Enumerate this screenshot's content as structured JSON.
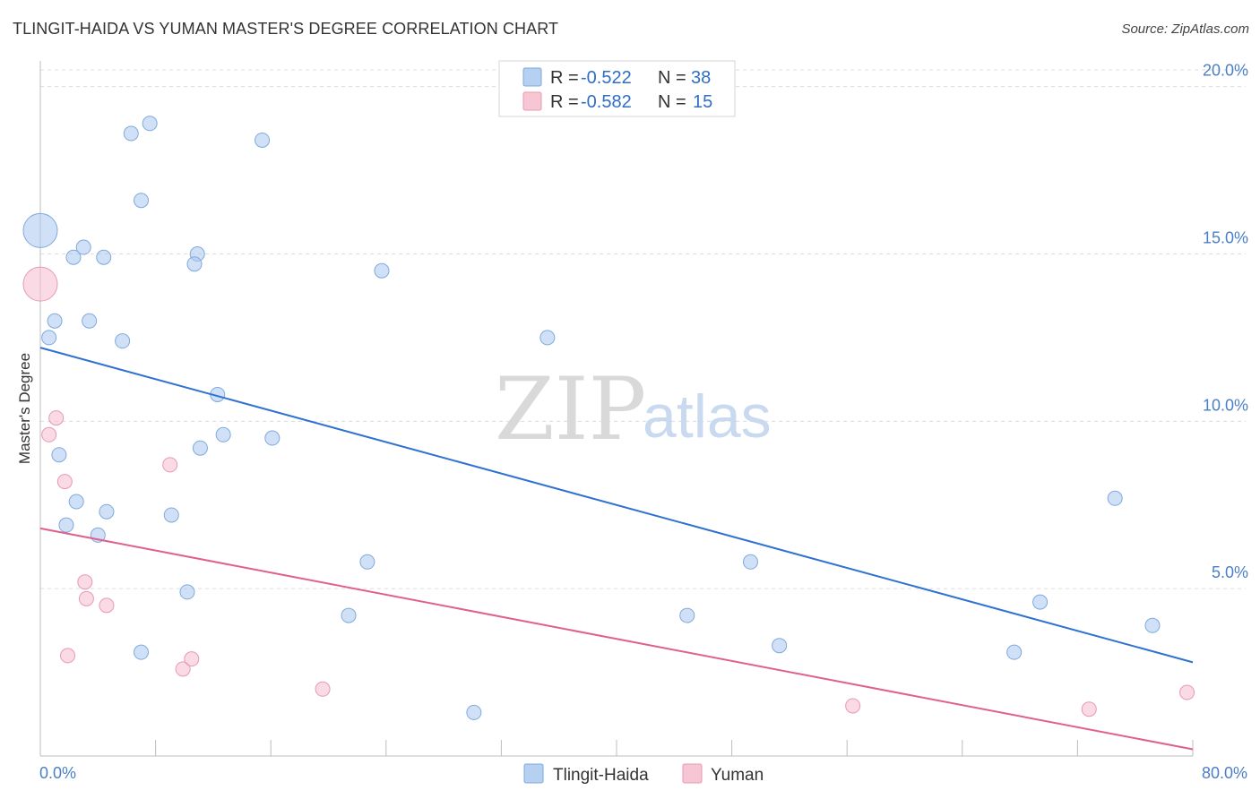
{
  "header": {
    "title": "TLINGIT-HAIDA VS YUMAN MASTER'S DEGREE CORRELATION CHART",
    "source": "Source: ZipAtlas.com"
  },
  "watermark": {
    "zip": "ZIP",
    "atlas": "atlas"
  },
  "chart_data": {
    "type": "scatter",
    "title": "TLINGIT-HAIDA VS YUMAN MASTER'S DEGREE CORRELATION CHART",
    "xlabel": "",
    "ylabel": "Master's Degree",
    "xlim": [
      0,
      80
    ],
    "ylim": [
      0,
      20.5
    ],
    "x_tick_labels": [
      {
        "value": 0,
        "label": "0.0%"
      },
      {
        "value": 80,
        "label": "80.0%"
      }
    ],
    "x_minor_ticks": [
      0,
      8,
      16,
      24,
      32,
      40,
      48,
      56,
      64,
      72,
      80
    ],
    "y_tick_labels": [
      {
        "value": 5,
        "label": "5.0%"
      },
      {
        "value": 10,
        "label": "10.0%"
      },
      {
        "value": 15,
        "label": "15.0%"
      },
      {
        "value": 20,
        "label": "20.0%"
      }
    ],
    "grid": true,
    "legend": {
      "position": "top-center",
      "entries": [
        {
          "r_label": "R =",
          "r_value": "-0.522",
          "n_label": "N =",
          "n_value": "38"
        },
        {
          "r_label": "R =",
          "r_value": "-0.582",
          "n_label": "N =",
          "n_value": "15"
        }
      ]
    },
    "series": [
      {
        "name": "Tlingit-Haida",
        "color": "#a9c8f0",
        "stroke": "#7fa9dc",
        "line_color": "#2f72cf",
        "trend": {
          "x": [
            0,
            80
          ],
          "y": [
            12.2,
            2.8
          ]
        },
        "points": [
          {
            "x": 0.0,
            "y": 15.7,
            "big": true
          },
          {
            "x": 6.3,
            "y": 18.6
          },
          {
            "x": 7.6,
            "y": 18.9
          },
          {
            "x": 15.4,
            "y": 18.4
          },
          {
            "x": 7.0,
            "y": 16.6
          },
          {
            "x": 3.0,
            "y": 15.2
          },
          {
            "x": 2.3,
            "y": 14.9
          },
          {
            "x": 4.4,
            "y": 14.9
          },
          {
            "x": 10.9,
            "y": 15.0
          },
          {
            "x": 10.7,
            "y": 14.7
          },
          {
            "x": 23.7,
            "y": 14.5
          },
          {
            "x": 1.0,
            "y": 13.0
          },
          {
            "x": 3.4,
            "y": 13.0
          },
          {
            "x": 0.6,
            "y": 12.5
          },
          {
            "x": 5.7,
            "y": 12.4
          },
          {
            "x": 35.2,
            "y": 12.5
          },
          {
            "x": 12.3,
            "y": 10.8
          },
          {
            "x": 12.7,
            "y": 9.6
          },
          {
            "x": 16.1,
            "y": 9.5
          },
          {
            "x": 11.1,
            "y": 9.2
          },
          {
            "x": 1.3,
            "y": 9.0
          },
          {
            "x": 2.5,
            "y": 7.6
          },
          {
            "x": 4.6,
            "y": 7.3
          },
          {
            "x": 9.1,
            "y": 7.2
          },
          {
            "x": 1.8,
            "y": 6.9
          },
          {
            "x": 4.0,
            "y": 6.6
          },
          {
            "x": 22.7,
            "y": 5.8
          },
          {
            "x": 49.3,
            "y": 5.8
          },
          {
            "x": 74.6,
            "y": 7.7
          },
          {
            "x": 10.2,
            "y": 4.9
          },
          {
            "x": 21.4,
            "y": 4.2
          },
          {
            "x": 44.9,
            "y": 4.2
          },
          {
            "x": 69.4,
            "y": 4.6
          },
          {
            "x": 77.2,
            "y": 3.9
          },
          {
            "x": 7.0,
            "y": 3.1
          },
          {
            "x": 51.3,
            "y": 3.3
          },
          {
            "x": 67.6,
            "y": 3.1
          },
          {
            "x": 30.1,
            "y": 1.3
          }
        ]
      },
      {
        "name": "Yuman",
        "color": "#f5bccd",
        "stroke": "#e899b2",
        "line_color": "#e0608c",
        "trend": {
          "x": [
            0,
            80
          ],
          "y": [
            6.8,
            0.2
          ]
        },
        "points": [
          {
            "x": 0.0,
            "y": 14.1,
            "big": true
          },
          {
            "x": 1.1,
            "y": 10.1
          },
          {
            "x": 0.6,
            "y": 9.6
          },
          {
            "x": 1.7,
            "y": 8.2
          },
          {
            "x": 9.0,
            "y": 8.7
          },
          {
            "x": 3.1,
            "y": 5.2
          },
          {
            "x": 3.2,
            "y": 4.7
          },
          {
            "x": 4.6,
            "y": 4.5
          },
          {
            "x": 1.9,
            "y": 3.0
          },
          {
            "x": 9.9,
            "y": 2.6
          },
          {
            "x": 10.5,
            "y": 2.9
          },
          {
            "x": 19.6,
            "y": 2.0
          },
          {
            "x": 56.4,
            "y": 1.5
          },
          {
            "x": 72.8,
            "y": 1.4
          },
          {
            "x": 79.6,
            "y": 1.9
          }
        ]
      }
    ]
  }
}
